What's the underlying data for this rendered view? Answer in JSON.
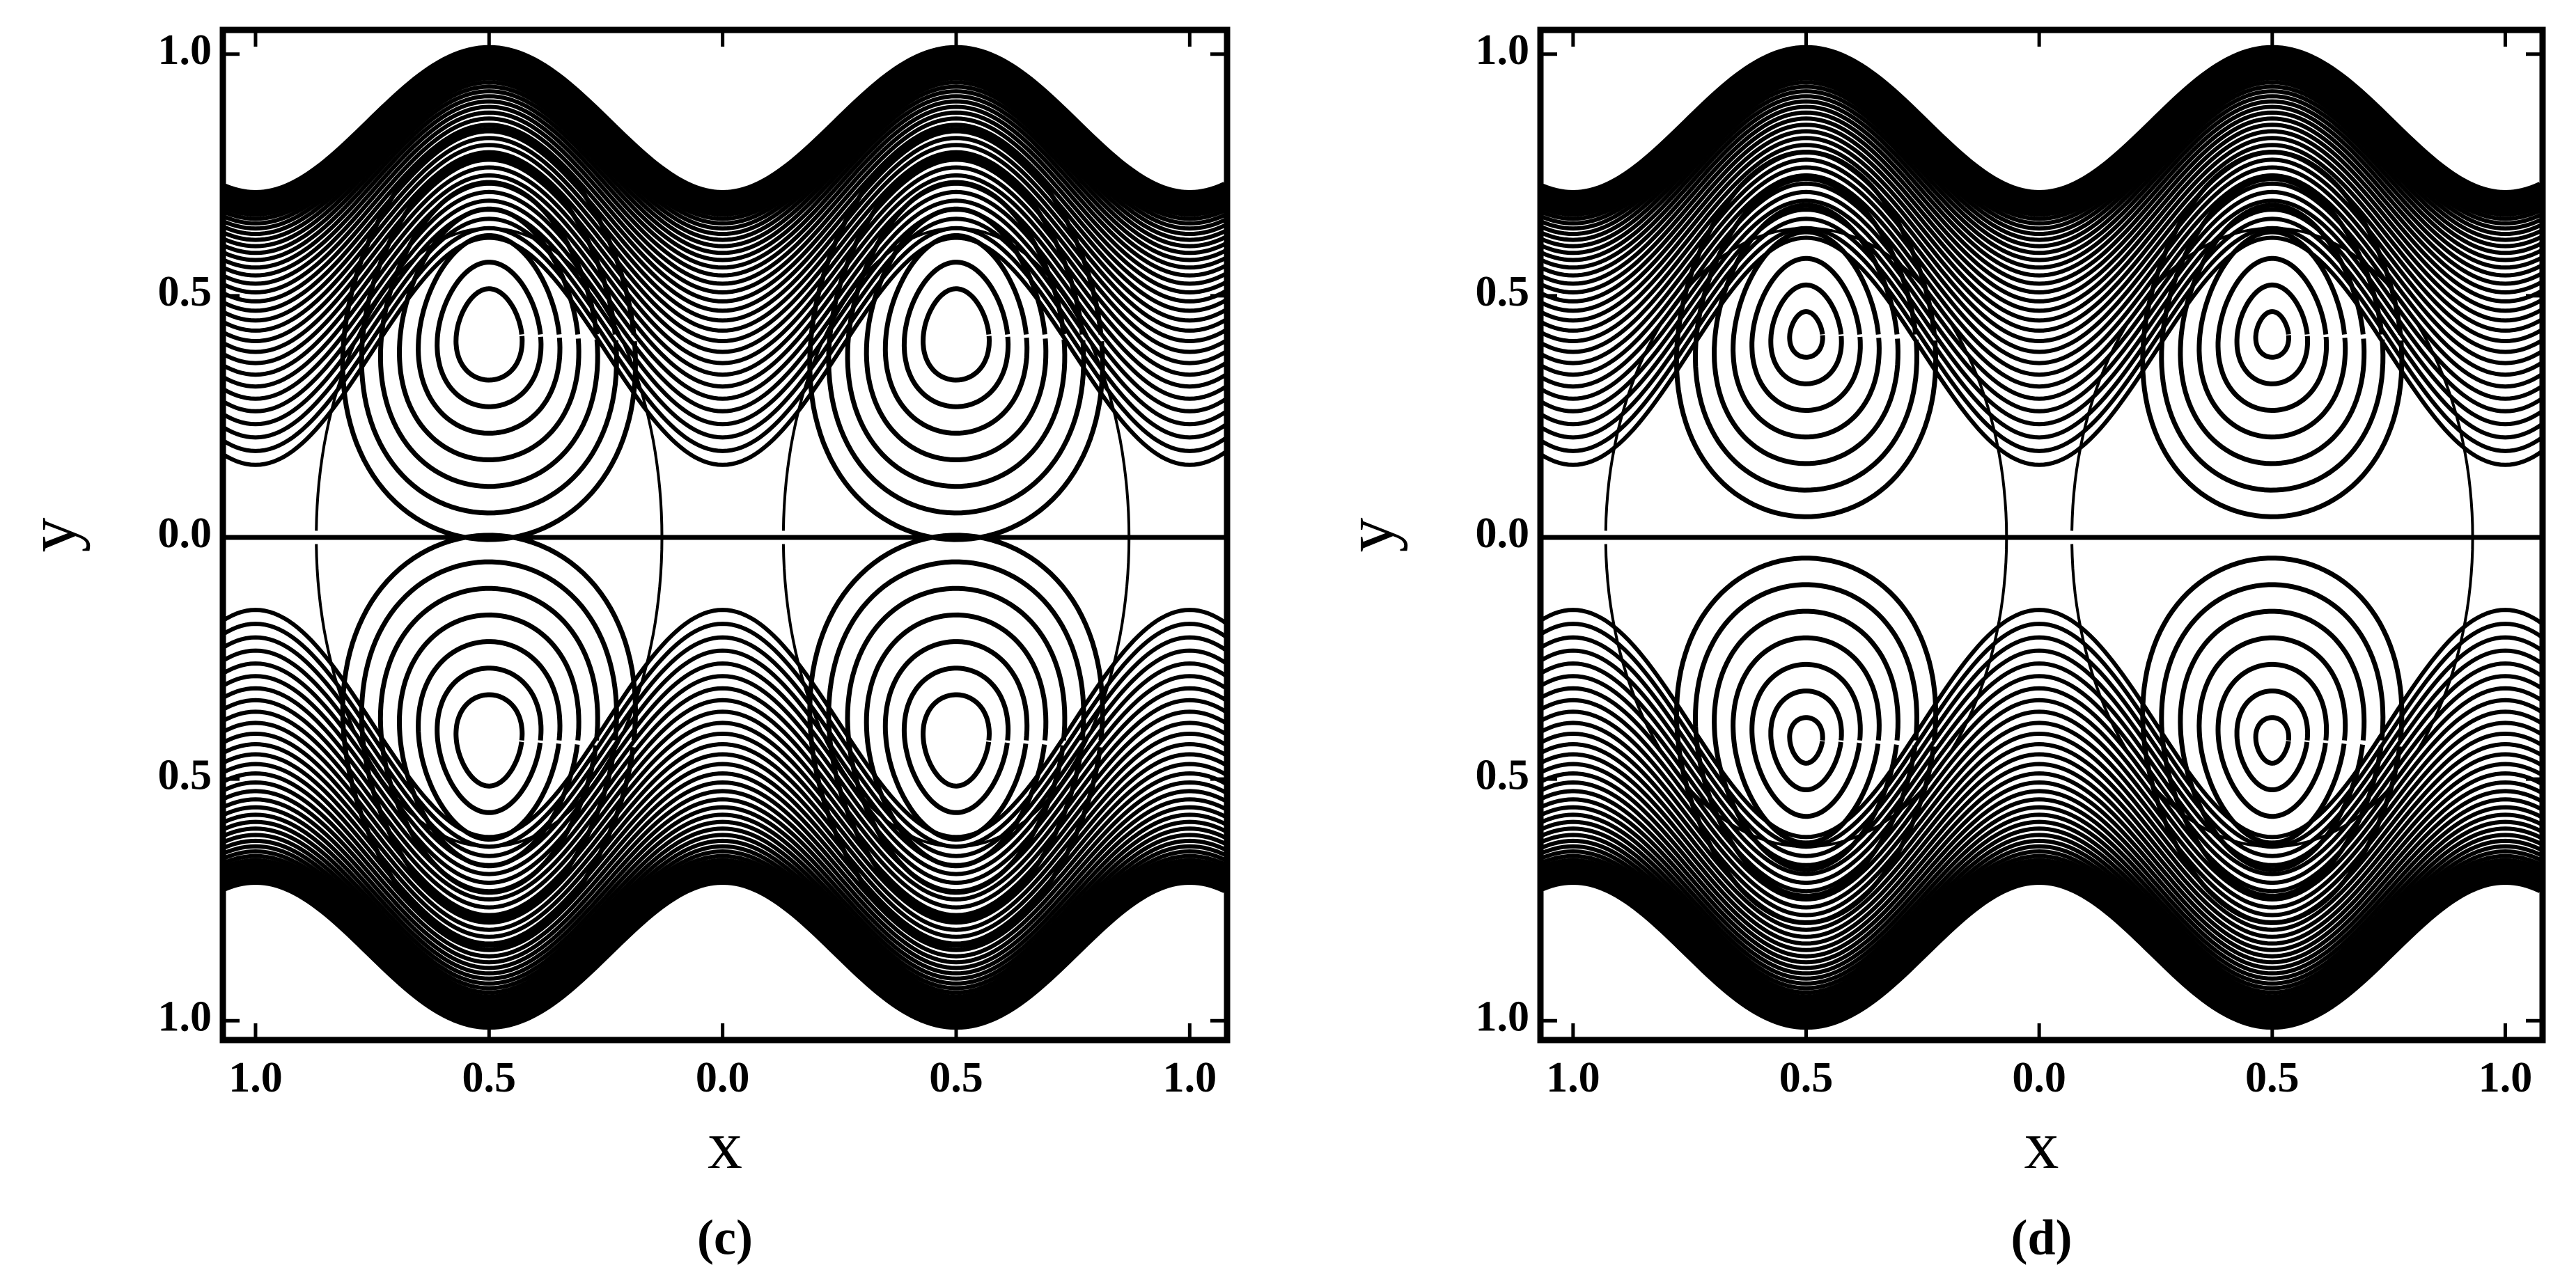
{
  "chart_data": [
    {
      "type": "contour",
      "caption": "(c)",
      "x_label": "x",
      "y_label": "y",
      "xlim": [
        -1.07,
        1.08
      ],
      "ylim": [
        -1.04,
        1.05
      ],
      "xticks": [
        {
          "value": -1,
          "label": "1.0"
        },
        {
          "value": -0.5,
          "label": "0.5"
        },
        {
          "value": 0,
          "label": "0.0"
        },
        0.5,
        {
          "value": 1,
          "label": "1.0"
        }
      ],
      "yticks": [
        {
          "value": -1,
          "label": "1.0"
        },
        {
          "value": -0.5,
          "label": "0.5"
        },
        {
          "value": 0,
          "label": "0.0"
        },
        0.5,
        {
          "value": 1,
          "label": "1.0"
        }
      ]
    },
    {
      "type": "contour",
      "caption": "(d)",
      "x_label": "x",
      "y_label": "y",
      "xlim": [
        -1.07,
        1.08
      ],
      "ylim": [
        -1.04,
        1.05
      ],
      "xticks": [
        {
          "value": -1,
          "label": "1.0"
        },
        {
          "value": -0.5,
          "label": "0.5"
        },
        {
          "value": 0,
          "label": "0.0"
        },
        0.5,
        {
          "value": 1,
          "label": "1.0"
        }
      ],
      "yticks": [
        {
          "value": -1,
          "label": "1.0"
        },
        {
          "value": -0.5,
          "label": "0.5"
        },
        {
          "value": 0,
          "label": "0.0"
        },
        0.5,
        {
          "value": 1,
          "label": "1.0"
        }
      ]
    }
  ]
}
